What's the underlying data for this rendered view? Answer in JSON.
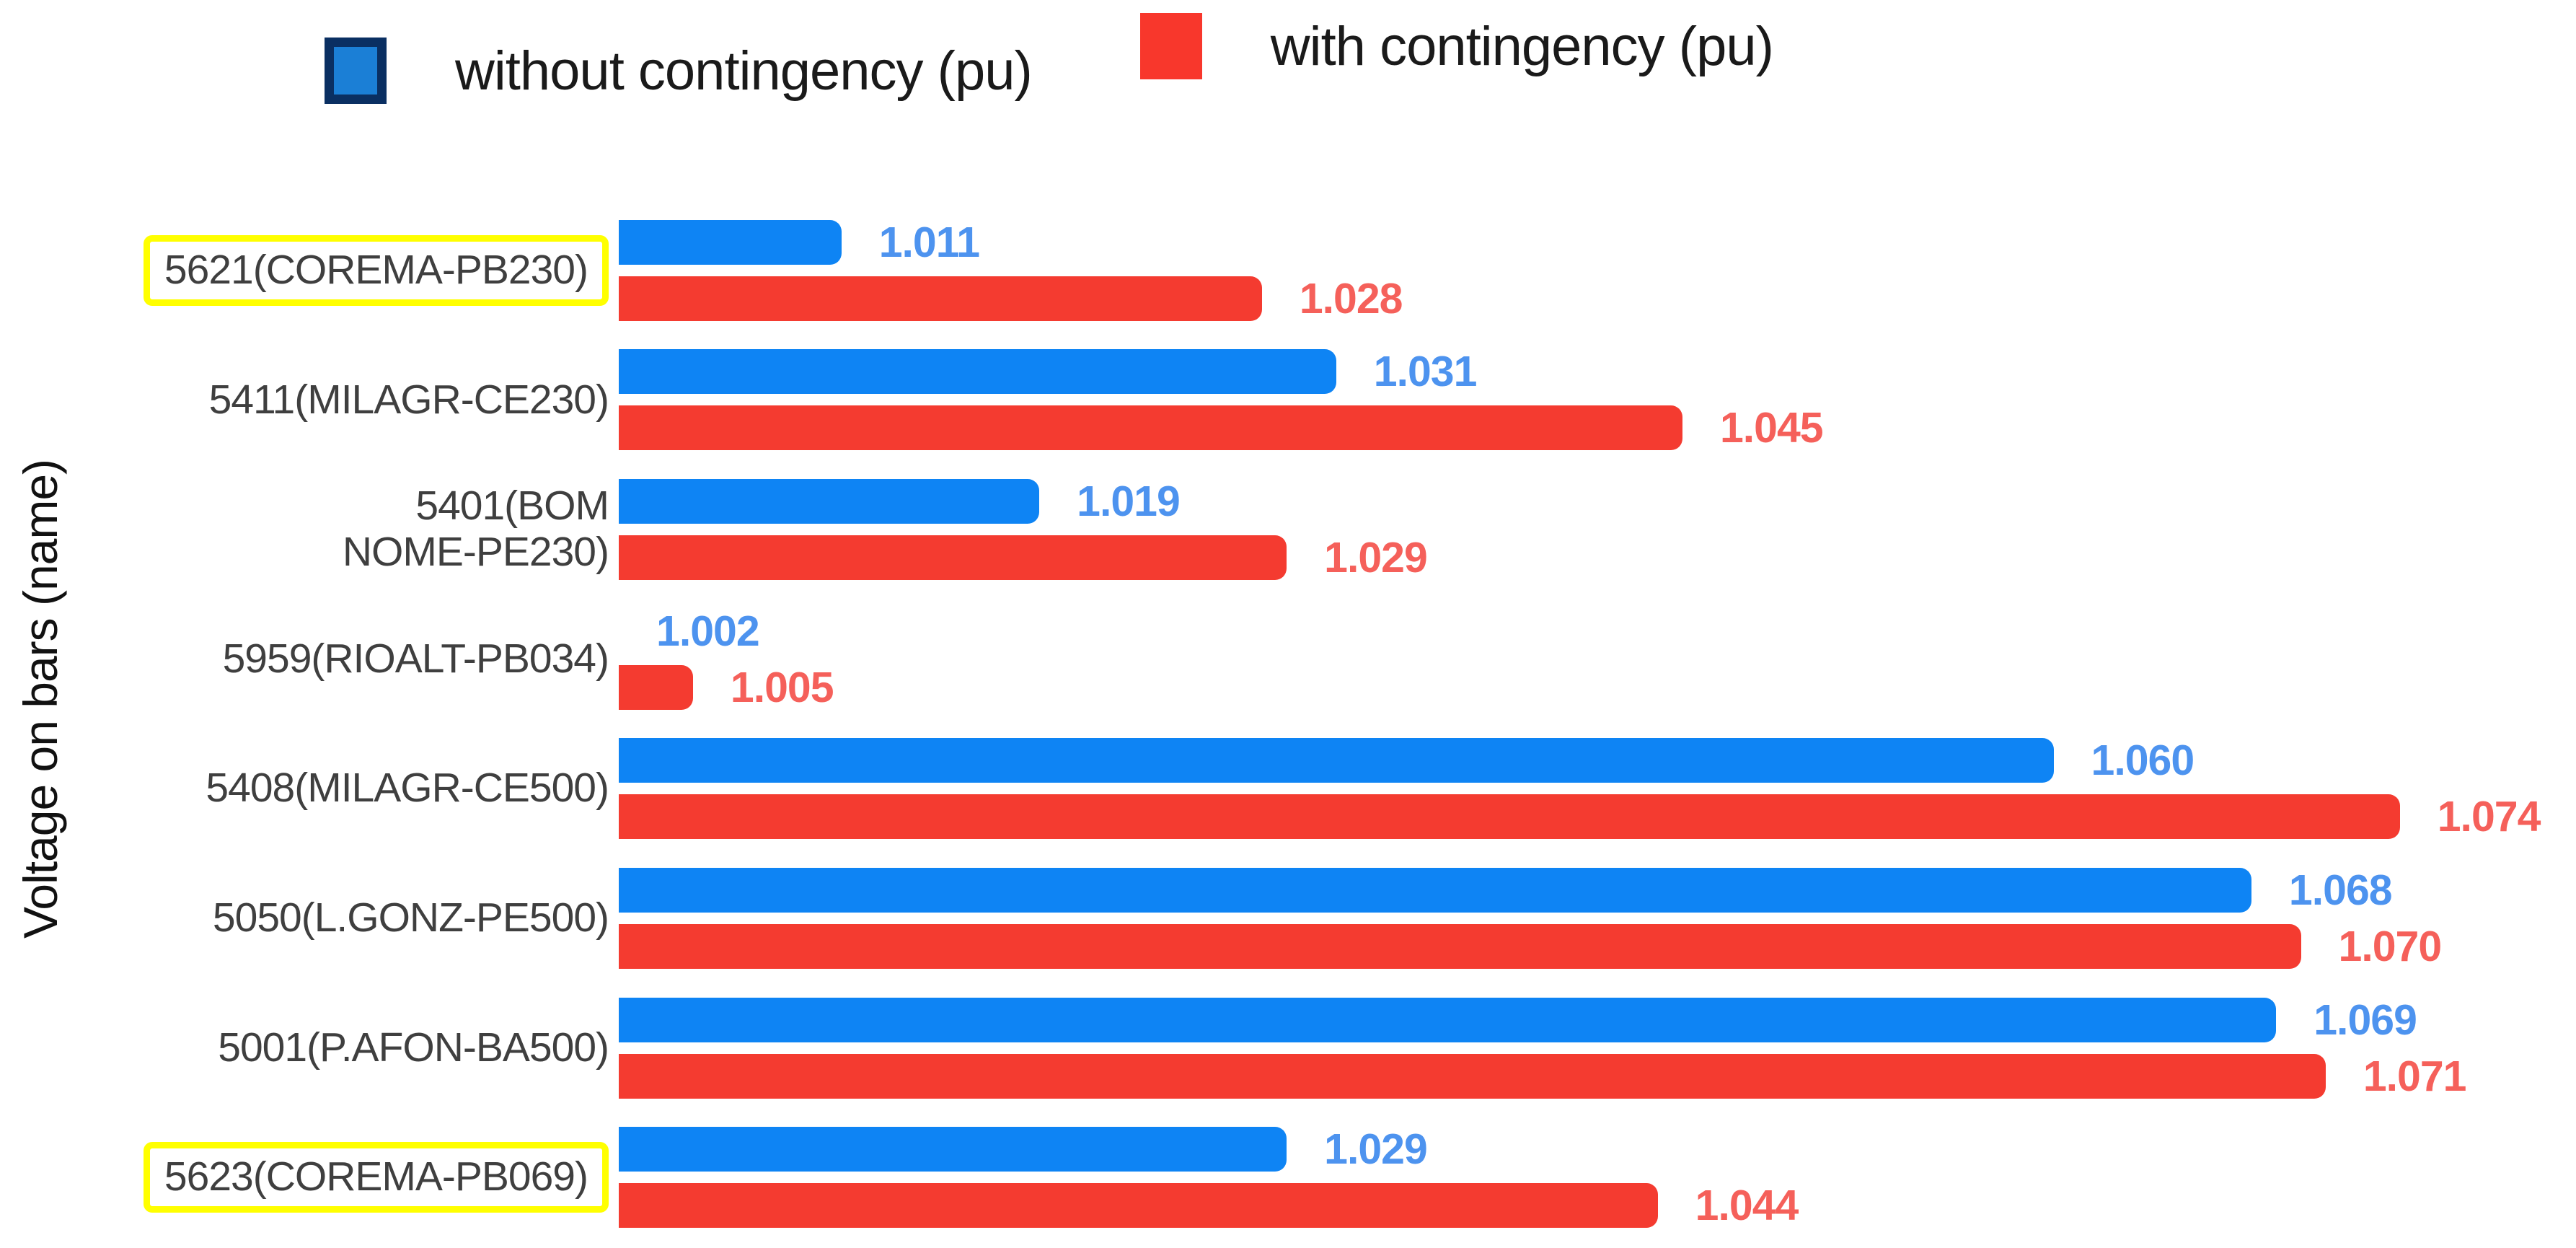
{
  "y_axis_label": "Voltage on bars (name)",
  "legend": [
    {
      "label": "without contingency (pu)",
      "swatch_fill": "#1b7fd6",
      "swatch_border": "#0a2f62"
    },
    {
      "label": "with contingency (pu)",
      "swatch_fill": "#f8372c",
      "swatch_border": "#f8372c"
    }
  ],
  "colors": {
    "bar_blue": "#0e84f4",
    "bar_red": "#f43b30",
    "value_label_blue": "#4d93ef",
    "value_label_red": "#f5605a",
    "category_text": "#3f3f3f",
    "highlight_box_yellow": "#ffff00"
  },
  "chart_data": {
    "type": "bar",
    "orientation": "horizontal",
    "title": "",
    "xlabel": "",
    "ylabel": "Voltage on bars (name)",
    "legend_position": "top",
    "grid": false,
    "categories": [
      "5621(COREMA-PB230)",
      "5411(MILAGR-CE230)",
      "5401(BOM\nNOME-PE230)",
      "5959(RIOALT-PB034)",
      "5408(MILAGR-CE500)",
      "5050(L.GONZ-PE500)",
      "5001(P.AFON-BA500)",
      "5623(COREMA-PB069)"
    ],
    "highlight_flags": [
      true,
      false,
      false,
      false,
      false,
      false,
      false,
      true
    ],
    "series": [
      {
        "name": "without contingency (pu)",
        "color": "#0e84f4",
        "label_color": "#4d93ef",
        "values": [
          1.011,
          1.031,
          1.019,
          1.002,
          1.06,
          1.068,
          1.069,
          1.029
        ],
        "value_labels": [
          "1.011",
          "1.031",
          "1.019",
          "1.002",
          "1.060",
          "1.068",
          "1.069",
          "1.029"
        ]
      },
      {
        "name": "with contingency (pu)",
        "color": "#f43b30",
        "label_color": "#f5605a",
        "values": [
          1.028,
          1.045,
          1.029,
          1.005,
          1.074,
          1.07,
          1.071,
          1.044
        ],
        "value_labels": [
          "1.028",
          "1.045",
          "1.029",
          "1.005",
          "1.074",
          "1.070",
          "1.071",
          "1.044"
        ]
      }
    ],
    "axis": {
      "min": 1.002,
      "max": 1.074,
      "max_bar_pct": 91
    }
  }
}
